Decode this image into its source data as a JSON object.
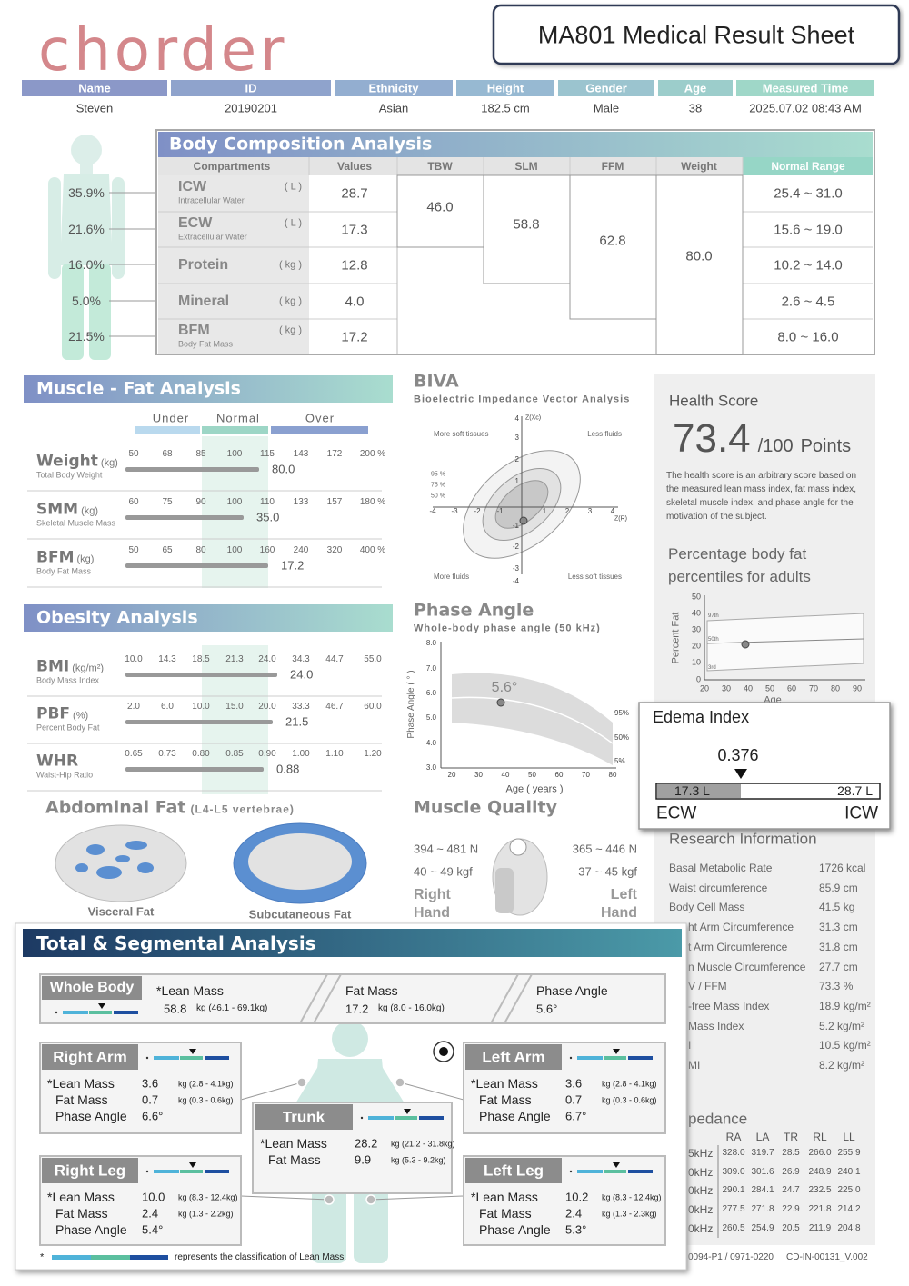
{
  "header": {
    "logo": "chorder",
    "title": "MA801 Medical Result Sheet"
  },
  "info": {
    "headers": [
      "Name",
      "ID",
      "Ethnicity",
      "Height",
      "Gender",
      "Age",
      "Measured Time"
    ],
    "values": [
      "Steven",
      "20190201",
      "Asian",
      "182.5 cm",
      "Male",
      "38",
      "2025.07.02 08:43 AM"
    ]
  },
  "body_composition": {
    "title": "Body Composition Analysis",
    "figure_percents": [
      "35.9%",
      "21.6%",
      "16.0%",
      "5.0%",
      "21.5%"
    ],
    "columns": [
      "Compartments",
      "Values",
      "TBW",
      "SLM",
      "FFM",
      "Weight",
      "Normal Range"
    ],
    "rows": [
      {
        "name": "ICW",
        "unit": "( L )",
        "desc": "Intracellular Water",
        "value": "28.7",
        "range": "25.4 ~ 31.0"
      },
      {
        "name": "ECW",
        "unit": "( L )",
        "desc": "Extracellular Water",
        "value": "17.3",
        "range": "15.6 ~ 19.0"
      },
      {
        "name": "Protein",
        "unit": "( kg )",
        "value": "12.8",
        "range": "10.2 ~ 14.0"
      },
      {
        "name": "Mineral",
        "unit": "( kg )",
        "value": "4.0",
        "range": "2.6 ~ 4.5"
      },
      {
        "name": "BFM",
        "unit": "( kg )",
        "desc": "Body Fat Mass",
        "value": "17.2",
        "range": "8.0 ~ 16.0"
      }
    ],
    "tbw": "46.0",
    "slm": "58.8",
    "ffm": "62.8",
    "weight": "80.0"
  },
  "muscle_fat": {
    "title": "Muscle - Fat Analysis",
    "levels": [
      "Under",
      "Normal",
      "Over"
    ],
    "rows": [
      {
        "name": "Weight",
        "unit": "(kg)",
        "desc": "Total Body Weight",
        "ticks": [
          "50",
          "68",
          "85",
          "100",
          "115",
          "143",
          "172",
          "200 %"
        ],
        "value": "80.0"
      },
      {
        "name": "SMM",
        "unit": "(kg)",
        "desc": "Skeletal Muscle Mass",
        "ticks": [
          "60",
          "75",
          "90",
          "100",
          "110",
          "133",
          "157",
          "180 %"
        ],
        "value": "35.0"
      },
      {
        "name": "BFM",
        "unit": "(kg)",
        "desc": "Body Fat Mass",
        "ticks": [
          "50",
          "65",
          "80",
          "100",
          "160",
          "240",
          "320",
          "400 %"
        ],
        "value": "17.2"
      }
    ]
  },
  "obesity": {
    "title": "Obesity Analysis",
    "rows": [
      {
        "name": "BMI",
        "unit": "(kg/m²)",
        "desc": "Body Mass Index",
        "ticks": [
          "10.0",
          "14.3",
          "18.5",
          "21.3",
          "24.0",
          "34.3",
          "44.7",
          "55.0"
        ],
        "value": "24.0"
      },
      {
        "name": "PBF",
        "unit": "(%)",
        "desc": "Percent Body Fat",
        "ticks": [
          "2.0",
          "6.0",
          "10.0",
          "15.0",
          "20.0",
          "33.3",
          "46.7",
          "60.0"
        ],
        "value": "21.5"
      },
      {
        "name": "WHR",
        "desc": "Waist-Hip Ratio",
        "ticks": [
          "0.65",
          "0.73",
          "0.80",
          "0.85",
          "0.90",
          "1.00",
          "1.10",
          "1.20"
        ],
        "value": "0.88"
      }
    ]
  },
  "abdominal": {
    "title": "Abdominal Fat",
    "subtitle": "(L4-L5 vertebrae)",
    "visceral": "Visceral Fat",
    "subcutaneous": "Subcutaneous Fat"
  },
  "biva": {
    "title": "BIVA",
    "subtitle": "Bioelectric Impedance Vector Analysis",
    "y_label": "Z(Xc)",
    "x_label": "Z(R)",
    "quadrants": [
      "More soft tissues",
      "Less fluids",
      "More fluids",
      "Less soft tissues"
    ],
    "ellipses": [
      "95 %",
      "75 %",
      "50 %"
    ],
    "x_ticks": [
      "-4",
      "-3",
      "-2",
      "-1",
      "1",
      "2",
      "3",
      "4"
    ],
    "y_ticks": [
      "4",
      "3",
      "2",
      "1",
      "-1",
      "-2",
      "-3",
      "-4"
    ]
  },
  "phase_angle": {
    "title": "Phase Angle",
    "subtitle": "Whole-body phase angle (50 kHz)",
    "y_label": "Phase Angle ( ° )",
    "x_label": "Age ( years )",
    "y_ticks": [
      "8.0",
      "7.0",
      "6.0",
      "5.0",
      "4.0",
      "3.0"
    ],
    "x_ticks": [
      "20",
      "30",
      "40",
      "50",
      "60",
      "70",
      "80"
    ],
    "value": "5.6°",
    "bands": [
      "95%",
      "50%",
      "5%"
    ]
  },
  "muscle_quality": {
    "title": "Muscle Quality",
    "right": {
      "force": "394 ~ 481 N",
      "kgf": "40 ~ 49 kgf",
      "label": "Right Hand"
    },
    "left": {
      "force": "365 ~ 446 N",
      "kgf": "37 ~ 45 kgf",
      "label": "Left Hand"
    }
  },
  "health": {
    "title": "Health Score",
    "score": "73.4",
    "max": "/100",
    "unit": "Points",
    "description": "The health score is an arbitrary score based on the measured lean mass index, fat mass index, skeletal muscle index, and phase angle for the motivation of the subject."
  },
  "pbf_chart": {
    "title": "Percentage body fat percentiles for adults",
    "y_label": "Percent Fat",
    "x_label": "Age",
    "y_ticks": [
      "50",
      "40",
      "30",
      "20",
      "10",
      "0"
    ],
    "x_ticks": [
      "20",
      "30",
      "40",
      "50",
      "60",
      "70",
      "80",
      "90"
    ],
    "percentiles": [
      "97th",
      "50th",
      "3rd"
    ]
  },
  "edema": {
    "title": "Edema Index",
    "value": "0.376",
    "ecw_value": "17.3 L",
    "icw_value": "28.7 L",
    "ecw": "ECW",
    "icw": "ICW"
  },
  "research": {
    "title": "Research Information",
    "items": [
      {
        "label": "Basal Metabolic Rate",
        "value": "1726 kcal"
      },
      {
        "label": "Waist circumference",
        "value": "85.9 cm"
      },
      {
        "label": "Body Cell Mass",
        "value": "41.5 kg"
      },
      {
        "label": "ht Arm Circumference",
        "value": "31.3 cm"
      },
      {
        "label": "t Arm Circumference",
        "value": "31.8 cm"
      },
      {
        "label": "n Muscle Circumference",
        "value": "27.7 cm"
      },
      {
        "label": "V / FFM",
        "value": "73.3 %"
      },
      {
        "label": "-free Mass Index",
        "value": "18.9 kg/m²"
      },
      {
        "label": "Mass Index",
        "value": "5.2 kg/m²"
      },
      {
        "label": "I",
        "value": "10.5 kg/m²"
      },
      {
        "label": "MI",
        "value": "8.2 kg/m²"
      }
    ]
  },
  "impedance": {
    "title": "pedance",
    "columns": [
      "RA",
      "LA",
      "TR",
      "RL",
      "LL"
    ],
    "rows": [
      {
        "label": "5kHz",
        "values": [
          "328.0",
          "319.7",
          "28.5",
          "266.0",
          "255.9"
        ]
      },
      {
        "label": "0kHz",
        "values": [
          "309.0",
          "301.6",
          "26.9",
          "248.9",
          "240.1"
        ]
      },
      {
        "label": "0kHz",
        "values": [
          "290.1",
          "284.1",
          "24.7",
          "232.5",
          "225.0"
        ]
      },
      {
        "label": "0kHz",
        "values": [
          "277.5",
          "271.8",
          "22.9",
          "221.8",
          "214.2"
        ]
      },
      {
        "label": "0kHz",
        "values": [
          "260.5",
          "254.9",
          "20.5",
          "211.9",
          "204.8"
        ]
      }
    ]
  },
  "footer": {
    "left": "0094-P1 / 0971-0220",
    "right": "CD-IN-00131_V.002"
  },
  "segmental": {
    "title": "Total & Segmental Analysis",
    "whole_body": {
      "label": "Whole Body",
      "lean_label": "*Lean Mass",
      "lean_value": "58.8",
      "lean_range": "kg (46.1 - 69.1kg)",
      "fat_label": "Fat Mass",
      "fat_value": "17.2",
      "fat_range": "kg (8.0 - 16.0kg)",
      "phase_label": "Phase Angle",
      "phase_value": "5.6°"
    },
    "segments": [
      {
        "label": "Right Arm",
        "rows": [
          {
            "label": "*Lean Mass",
            "value": "3.6",
            "range": "kg (2.8 - 4.1kg)"
          },
          {
            "label": "Fat Mass",
            "value": "0.7",
            "range": "kg (0.3 - 0.6kg)"
          },
          {
            "label": "Phase Angle",
            "value": "6.6°"
          }
        ]
      },
      {
        "label": "Left Arm",
        "rows": [
          {
            "label": "*Lean Mass",
            "value": "3.6",
            "range": "kg (2.8 - 4.1kg)"
          },
          {
            "label": "Fat Mass",
            "value": "0.7",
            "range": "kg (0.3 - 0.6kg)"
          },
          {
            "label": "Phase Angle",
            "value": "6.7°"
          }
        ]
      },
      {
        "label": "Trunk",
        "rows": [
          {
            "label": "*Lean Mass",
            "value": "28.2",
            "range": "kg (21.2 - 31.8kg)"
          },
          {
            "label": "Fat Mass",
            "value": "9.9",
            "range": "kg (5.3 - 9.2kg)"
          }
        ]
      },
      {
        "label": "Right Leg",
        "rows": [
          {
            "label": "*Lean Mass",
            "value": "10.0",
            "range": "kg (8.3 - 12.4kg)"
          },
          {
            "label": "Fat Mass",
            "value": "2.4",
            "range": "kg (1.3 - 2.2kg)"
          },
          {
            "label": "Phase Angle",
            "value": "5.4°"
          }
        ]
      },
      {
        "label": "Left Leg",
        "rows": [
          {
            "label": "*Lean Mass",
            "value": "10.2",
            "range": "kg (8.3 - 12.4kg)"
          },
          {
            "label": "Fat Mass",
            "value": "2.4",
            "range": "kg (1.3 - 2.3kg)"
          },
          {
            "label": "Phase Angle",
            "value": "5.3°"
          }
        ]
      }
    ],
    "note_star": "*",
    "note": "represents the classification of Lean Mass."
  }
}
